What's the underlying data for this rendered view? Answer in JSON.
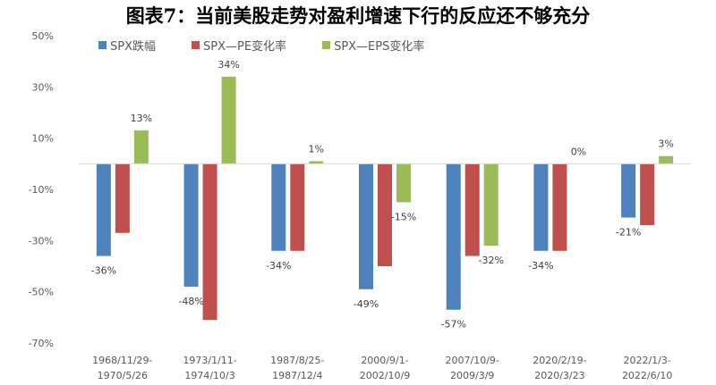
{
  "chart_data": {
    "type": "bar",
    "title": "图表7：当前美股走势对盈利增速下行的反应还不够充分",
    "categories": [
      [
        "1968/11/29-",
        "1970/5/26"
      ],
      [
        "1973/1/11-",
        "1974/10/3"
      ],
      [
        "1987/8/25-",
        "1987/12/4"
      ],
      [
        "2000/9/1-",
        "2002/10/9"
      ],
      [
        "2007/10/9-",
        "2009/3/9"
      ],
      [
        "2020/2/19-",
        "2020/3/23"
      ],
      [
        "2022/1/3-",
        "2022/6/10"
      ]
    ],
    "series": [
      {
        "name": "SPX跌幅",
        "color": "#4F81BD",
        "values": [
          -36,
          -48,
          -34,
          -49,
          -57,
          -34,
          -21
        ],
        "labels": [
          "-36%",
          "-48%",
          "-34%",
          "-49%",
          "-57%",
          "-34%",
          "-21%"
        ]
      },
      {
        "name": "SPX—PE变化率",
        "color": "#C0504D",
        "values": [
          -27,
          -61,
          -34,
          -40,
          -36,
          -34,
          -24
        ],
        "labels": []
      },
      {
        "name": "SPX—EPS变化率",
        "color": "#9BBB59",
        "values": [
          13,
          34,
          1,
          -15,
          -32,
          0,
          3
        ],
        "labels": [
          "13%",
          "34%",
          "1%",
          "-15%",
          "-32%",
          "0%",
          "3%"
        ]
      }
    ],
    "yticks": [
      50,
      30,
      10,
      -10,
      -30,
      -50,
      -70
    ],
    "ytick_labels": [
      "50%",
      "30%",
      "10%",
      "-10%",
      "-30%",
      "-50%",
      "-70%"
    ],
    "ylim": [
      -70,
      50
    ],
    "legend_position": "top-left",
    "grid": false
  }
}
